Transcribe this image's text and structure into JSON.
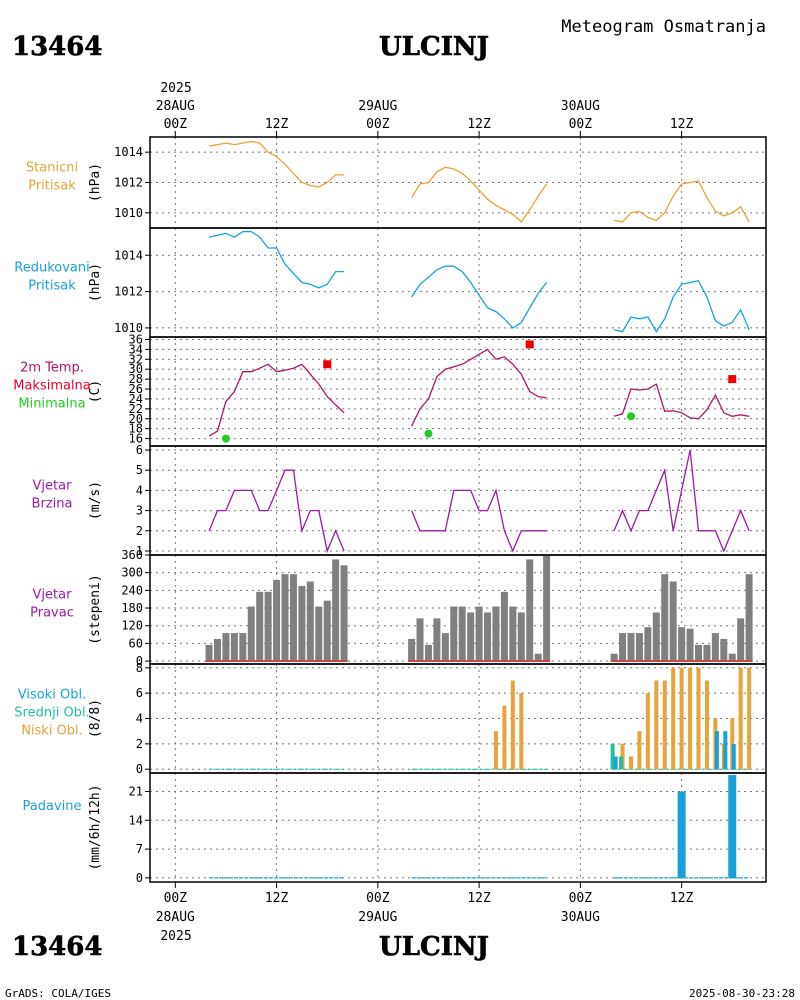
{
  "header": {
    "station_id": "13464",
    "station_name": "ULCINJ",
    "product": "Meteogram Osmatranja",
    "credit": "GrADS: COLA/IGES",
    "timestamp": "2025-08-30-23:28"
  },
  "time_axis": {
    "top_year": "2025",
    "bottom_year": "2025",
    "ticks": [
      {
        "h": 0,
        "label": "00Z",
        "date": "28AUG"
      },
      {
        "h": 12,
        "label": "12Z",
        "date": ""
      },
      {
        "h": 24,
        "label": "00Z",
        "date": "29AUG"
      },
      {
        "h": 36,
        "label": "12Z",
        "date": ""
      },
      {
        "h": 48,
        "label": "00Z",
        "date": "30AUG"
      },
      {
        "h": 60,
        "label": "12Z",
        "date": ""
      }
    ],
    "range_hours": [
      -3,
      70
    ]
  },
  "colors": {
    "station_pressure": "#e8a33a",
    "reduced_pressure": "#1aa0d8",
    "temperature": "#b0156a",
    "tmax_label": "#e8002a",
    "tmax_marker": "#ee0000",
    "tmin": "#22cc22",
    "wind": "#9a1aa8",
    "bars_gray": "#808080",
    "wind_dir_baseline": "#cc4444",
    "cloud_high": "#1aa0d8",
    "cloud_mid": "#22c0a0",
    "cloud_low": "#e8a33a",
    "precip": "#1aa0d8"
  },
  "chart_data": [
    {
      "type": "line",
      "id": "station_pressure",
      "labels": [
        "Stanicni",
        "Pritisak"
      ],
      "ylabel": "(hPa)",
      "ylim": [
        1009,
        1015
      ],
      "yticks": [
        1010,
        1012,
        1014
      ],
      "segments": [
        {
          "x": [
            4,
            5,
            6,
            7,
            8,
            9,
            10,
            11,
            12,
            13,
            14,
            15,
            16,
            17,
            18,
            19,
            20
          ],
          "y": [
            1014.4,
            1014.5,
            1014.6,
            1014.5,
            1014.6,
            1014.7,
            1014.6,
            1014.0,
            1013.7,
            1013.2,
            1012.6,
            1012.0,
            1011.8,
            1011.7,
            1012.0,
            1012.5,
            1012.5
          ]
        },
        {
          "x": [
            28,
            29,
            30,
            31,
            32,
            33,
            34,
            35,
            36,
            37,
            38,
            39,
            40,
            41,
            42,
            43,
            44
          ],
          "y": [
            1011.0,
            1011.9,
            1012.0,
            1012.7,
            1013.0,
            1012.9,
            1012.6,
            1012.1,
            1011.5,
            1010.9,
            1010.5,
            1010.2,
            1009.9,
            1009.4,
            1010.2,
            1011.1,
            1011.9
          ]
        },
        {
          "x": [
            52,
            53,
            54,
            55,
            56,
            57,
            58,
            59,
            60,
            61,
            62,
            63,
            64,
            65,
            66,
            67,
            68
          ],
          "y": [
            1009.5,
            1009.4,
            1010.0,
            1010.1,
            1009.7,
            1009.5,
            1010.0,
            1011.1,
            1011.9,
            1012.0,
            1012.1,
            1011.0,
            1010.1,
            1009.8,
            1010.0,
            1010.4,
            1009.4
          ]
        }
      ]
    },
    {
      "type": "line",
      "id": "reduced_pressure",
      "labels": [
        "Redukovani",
        "Pritisak"
      ],
      "ylabel": "(hPa)",
      "ylim": [
        1009.5,
        1015.5
      ],
      "yticks": [
        1010,
        1012,
        1014
      ],
      "segments": [
        {
          "x": [
            4,
            5,
            6,
            7,
            8,
            9,
            10,
            11,
            12,
            13,
            14,
            15,
            16,
            17,
            18,
            19,
            20
          ],
          "y": [
            1015.0,
            1015.1,
            1015.2,
            1015.0,
            1015.3,
            1015.3,
            1015.0,
            1014.4,
            1014.4,
            1013.5,
            1013.0,
            1012.5,
            1012.4,
            1012.2,
            1012.4,
            1013.1,
            1013.1
          ]
        },
        {
          "x": [
            28,
            29,
            30,
            31,
            32,
            33,
            34,
            35,
            36,
            37,
            38,
            39,
            40,
            41,
            42,
            43,
            44
          ],
          "y": [
            1011.7,
            1012.4,
            1012.8,
            1013.2,
            1013.4,
            1013.4,
            1013.1,
            1012.5,
            1011.8,
            1011.1,
            1010.9,
            1010.5,
            1010.0,
            1010.3,
            1011.1,
            1011.9,
            1012.5
          ]
        },
        {
          "x": [
            52,
            53,
            54,
            55,
            56,
            57,
            58,
            59,
            60,
            61,
            62,
            63,
            64,
            65,
            66,
            67,
            68
          ],
          "y": [
            1009.9,
            1009.8,
            1010.6,
            1010.5,
            1010.6,
            1009.8,
            1010.5,
            1011.7,
            1012.4,
            1012.5,
            1012.6,
            1011.7,
            1010.4,
            1010.1,
            1010.3,
            1011.0,
            1009.9
          ]
        }
      ]
    },
    {
      "type": "line",
      "id": "temperature",
      "labels": [
        "2m Temp.",
        "Maksimalna",
        "Minimalna"
      ],
      "ylabel": "(C)",
      "ylim": [
        14.5,
        36.5
      ],
      "yticks": [
        16,
        18,
        20,
        22,
        24,
        26,
        28,
        30,
        32,
        34,
        36
      ],
      "segments": [
        {
          "x": [
            4,
            5,
            6,
            7,
            8,
            9,
            10,
            11,
            12,
            13,
            14,
            15,
            16,
            17,
            18,
            19,
            20
          ],
          "y": [
            16.5,
            17.5,
            23.5,
            25.5,
            29.5,
            29.5,
            30.2,
            31.0,
            29.5,
            29.8,
            30.2,
            31.0,
            29.0,
            27.0,
            24.5,
            22.8,
            21.2
          ]
        },
        {
          "x": [
            28,
            29,
            30,
            31,
            32,
            33,
            34,
            35,
            36,
            37,
            38,
            39,
            40,
            41,
            42,
            43,
            44
          ],
          "y": [
            18.5,
            22.0,
            24.0,
            28.5,
            30.0,
            30.5,
            31.0,
            32.0,
            33.0,
            34.0,
            32.0,
            32.5,
            31.0,
            29.0,
            25.5,
            24.5,
            24.2
          ]
        },
        {
          "x": [
            52,
            53,
            54,
            55,
            56,
            57,
            58,
            59,
            60,
            61,
            62,
            63,
            64,
            65,
            66,
            67,
            68
          ],
          "y": [
            20.5,
            21.0,
            26.0,
            25.8,
            26.0,
            27.0,
            21.5,
            21.6,
            21.2,
            20.2,
            20.0,
            21.8,
            24.8,
            21.2,
            20.5,
            20.8,
            20.5
          ]
        }
      ],
      "tmax": [
        {
          "x": 18,
          "y": 31.0
        },
        {
          "x": 42,
          "y": 35.0
        },
        {
          "x": 66,
          "y": 28.0
        }
      ],
      "tmin": [
        {
          "x": 6,
          "y": 16.0
        },
        {
          "x": 30,
          "y": 17.0
        },
        {
          "x": 54,
          "y": 20.5
        }
      ]
    },
    {
      "type": "line",
      "id": "wind_speed",
      "labels": [
        "Vjetar",
        "Brzina"
      ],
      "ylabel": "(m/s)",
      "ylim": [
        0.8,
        6.2
      ],
      "yticks": [
        1,
        2,
        3,
        4,
        5,
        6
      ],
      "segments": [
        {
          "x": [
            4,
            5,
            6,
            7,
            8,
            9,
            10,
            11,
            12,
            13,
            14,
            15,
            16,
            17,
            18,
            19,
            20
          ],
          "y": [
            2,
            3,
            3,
            4,
            4,
            4,
            3,
            3,
            4,
            5,
            5,
            2,
            3,
            3,
            1,
            2,
            1
          ]
        },
        {
          "x": [
            28,
            29,
            30,
            31,
            32,
            33,
            34,
            35,
            36,
            37,
            38,
            39,
            40,
            41,
            42,
            43,
            44
          ],
          "y": [
            3,
            2,
            2,
            2,
            2,
            4,
            4,
            4,
            3,
            3,
            4,
            2,
            1,
            2,
            2,
            2,
            2
          ]
        },
        {
          "x": [
            52,
            53,
            54,
            55,
            56,
            57,
            58,
            59,
            60,
            61,
            62,
            63,
            64,
            65,
            66,
            67,
            68
          ],
          "y": [
            2,
            3,
            2,
            3,
            3,
            4,
            5,
            2,
            4,
            6,
            2,
            2,
            2,
            1,
            2,
            3,
            2
          ]
        }
      ]
    },
    {
      "type": "bar",
      "id": "wind_direction",
      "labels": [
        "Vjetar",
        "Pravac"
      ],
      "ylabel": "(stepeni)",
      "ylim": [
        -10,
        360
      ],
      "yticks": [
        0,
        60,
        120,
        180,
        240,
        300,
        360
      ],
      "bars": [
        {
          "x": [
            4,
            5,
            6,
            7,
            8,
            9,
            10,
            11,
            12,
            13,
            14,
            15,
            16,
            17,
            18,
            19,
            20
          ],
          "values": [
            55,
            75,
            95,
            95,
            95,
            185,
            235,
            235,
            275,
            295,
            295,
            255,
            270,
            185,
            205,
            345,
            325
          ]
        },
        {
          "x": [
            28,
            29,
            30,
            31,
            32,
            33,
            34,
            35,
            36,
            37,
            38,
            39,
            40,
            41,
            42,
            43,
            44
          ],
          "values": [
            75,
            145,
            55,
            145,
            95,
            185,
            185,
            165,
            185,
            165,
            185,
            235,
            185,
            165,
            345,
            25,
            360
          ]
        },
        {
          "x": [
            52,
            53,
            54,
            55,
            56,
            57,
            58,
            59,
            60,
            61,
            62,
            63,
            64,
            65,
            66,
            67,
            68
          ],
          "values": [
            25,
            95,
            95,
            95,
            115,
            165,
            295,
            270,
            115,
            110,
            55,
            55,
            95,
            75,
            25,
            145,
            295
          ]
        }
      ]
    },
    {
      "type": "bar",
      "id": "clouds",
      "labels": [
        "Visoki Obl.",
        "Srednji Obl.",
        "Niski Obl."
      ],
      "ylabel": "(8/8)",
      "ylim": [
        -0.3,
        8.3
      ],
      "yticks": [
        0,
        2,
        4,
        6,
        8
      ],
      "series": [
        {
          "name": "low",
          "x": [
            38,
            39,
            40,
            41,
            42,
            53,
            54,
            55,
            56,
            57,
            58,
            59,
            60,
            61,
            62,
            63,
            64,
            65,
            66,
            67,
            68
          ],
          "values": [
            3,
            5,
            7,
            6,
            0,
            2,
            1,
            3,
            6,
            7,
            7,
            8,
            8,
            8,
            8,
            7,
            4,
            2,
            4,
            8,
            8
          ]
        },
        {
          "name": "mid",
          "x": [
            52,
            53
          ],
          "values": [
            2,
            1
          ]
        },
        {
          "name": "high",
          "x": [
            52,
            64,
            65,
            66
          ],
          "values": [
            1,
            3,
            3,
            2
          ]
        }
      ]
    },
    {
      "type": "bar",
      "id": "precipitation",
      "labels": [
        "Padavine"
      ],
      "ylabel": "(mm/6h/12h)",
      "ylim": [
        -1,
        25.5
      ],
      "yticks": [
        0,
        7,
        14,
        21
      ],
      "bars": [
        {
          "x": [
            60,
            66
          ],
          "values": [
            21,
            25
          ]
        }
      ]
    }
  ]
}
